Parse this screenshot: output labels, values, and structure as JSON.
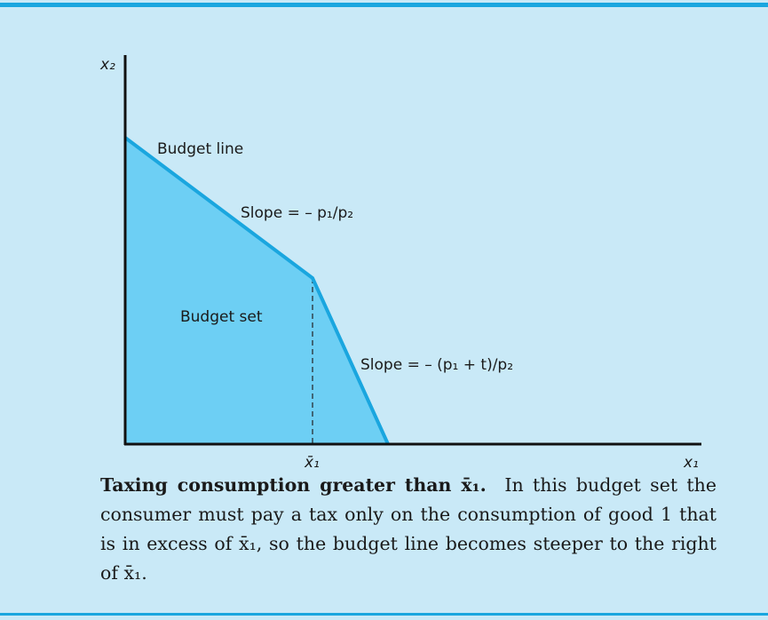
{
  "diagram": {
    "axis_y_label": "x₂",
    "axis_x_label": "x₁",
    "kink_label": "x̄₁",
    "budget_line_label": "Budget line",
    "slope_left_label": "Slope = – p₁/p₂",
    "slope_right_label": "Slope = – (p₁ + t)/p₂",
    "budget_set_label": "Budget set"
  },
  "caption": {
    "title": "Taxing consumption greater than x̄₁.",
    "text": "In this budget set the consumer must pay a tax only on the consumption of good 1 that is in excess of x̄₁, so the budget line becomes steeper to the right of x̄₁."
  }
}
